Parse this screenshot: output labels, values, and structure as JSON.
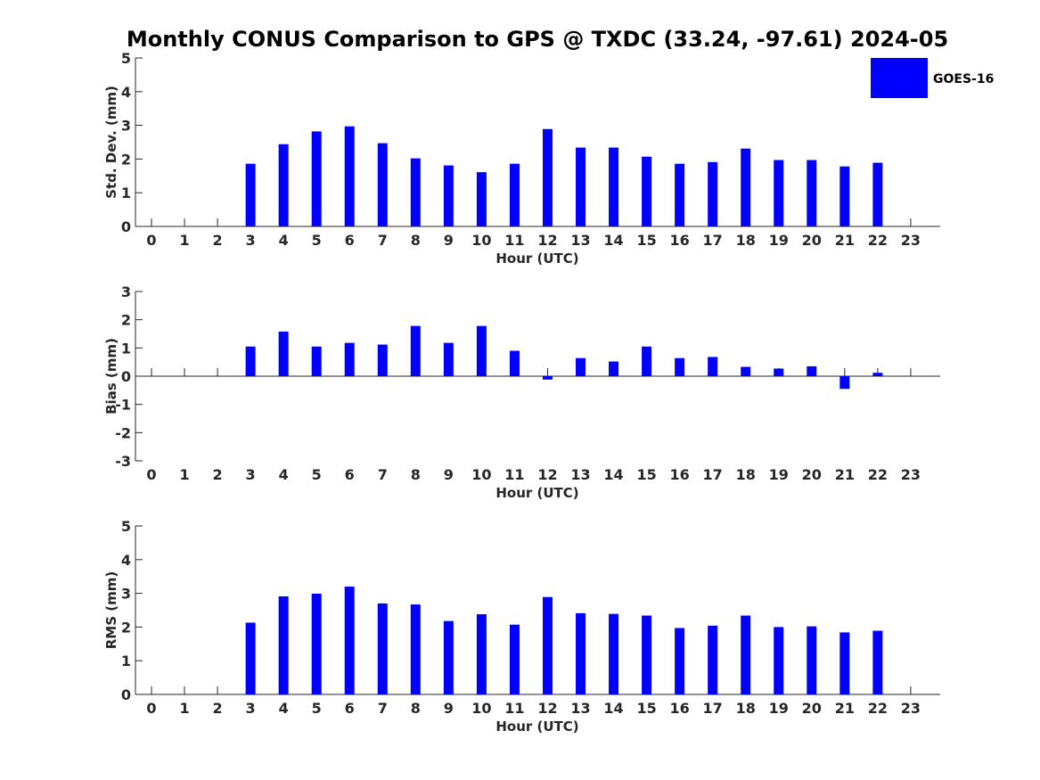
{
  "title": "Monthly CONUS Comparison to GPS @ TXDC (33.24, -97.61) 2024-05",
  "legend": {
    "label": "GOES-16",
    "color": "#0000ff",
    "placement": "top-right"
  },
  "chart_data": [
    {
      "type": "bar",
      "ylabel": "Std. Dev. (mm)",
      "xlabel": "Hour (UTC)",
      "ylim": [
        0,
        5
      ],
      "yticks": [
        0,
        1,
        2,
        3,
        4,
        5
      ],
      "categories": [
        0,
        1,
        2,
        3,
        4,
        5,
        6,
        7,
        8,
        9,
        10,
        11,
        12,
        13,
        14,
        15,
        16,
        17,
        18,
        19,
        20,
        21,
        22,
        23
      ],
      "series": [
        {
          "name": "GOES-16",
          "color": "#0000ff",
          "values": [
            null,
            null,
            null,
            1.86,
            2.44,
            2.82,
            2.97,
            2.47,
            2.02,
            1.81,
            1.61,
            1.86,
            2.89,
            2.34,
            2.34,
            2.07,
            1.86,
            1.91,
            2.31,
            1.97,
            1.97,
            1.78,
            1.89,
            null
          ]
        }
      ]
    },
    {
      "type": "bar",
      "ylabel": "Bias (mm)",
      "xlabel": "Hour (UTC)",
      "ylim": [
        -3,
        3
      ],
      "yticks": [
        -3,
        -2,
        -1,
        0,
        1,
        2,
        3
      ],
      "categories": [
        0,
        1,
        2,
        3,
        4,
        5,
        6,
        7,
        8,
        9,
        10,
        11,
        12,
        13,
        14,
        15,
        16,
        17,
        18,
        19,
        20,
        21,
        22,
        23
      ],
      "series": [
        {
          "name": "GOES-16",
          "color": "#0000ff",
          "values": [
            null,
            null,
            null,
            1.05,
            1.58,
            1.05,
            1.18,
            1.12,
            1.78,
            1.18,
            1.78,
            0.9,
            -0.12,
            0.64,
            0.52,
            1.05,
            0.64,
            0.68,
            0.33,
            0.27,
            0.35,
            -0.45,
            0.12,
            null
          ]
        }
      ]
    },
    {
      "type": "bar",
      "ylabel": "RMS (mm)",
      "xlabel": "Hour (UTC)",
      "ylim": [
        0,
        5
      ],
      "yticks": [
        0,
        1,
        2,
        3,
        4,
        5
      ],
      "categories": [
        0,
        1,
        2,
        3,
        4,
        5,
        6,
        7,
        8,
        9,
        10,
        11,
        12,
        13,
        14,
        15,
        16,
        17,
        18,
        19,
        20,
        21,
        22,
        23
      ],
      "series": [
        {
          "name": "GOES-16",
          "color": "#0000ff",
          "values": [
            null,
            null,
            null,
            2.13,
            2.91,
            2.99,
            3.2,
            2.7,
            2.67,
            2.18,
            2.38,
            2.07,
            2.89,
            2.41,
            2.39,
            2.34,
            1.97,
            2.04,
            2.34,
            2.0,
            2.02,
            1.84,
            1.89,
            null
          ]
        }
      ]
    }
  ]
}
